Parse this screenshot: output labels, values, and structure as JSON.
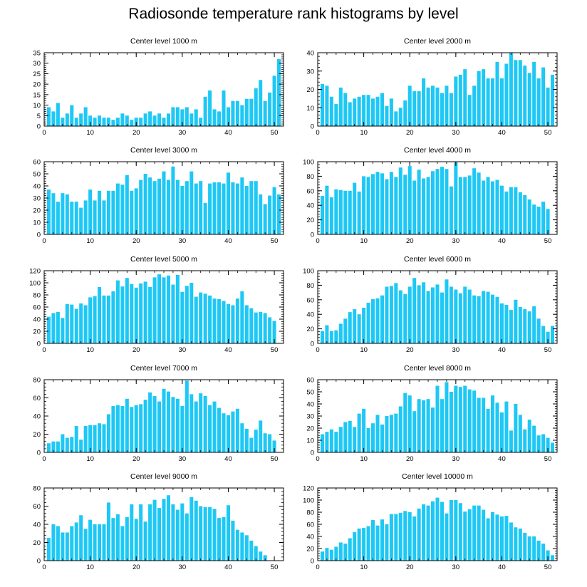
{
  "title": "Radiosonde temperature rank histograms by level",
  "bar_color": "#1ec8f5",
  "chart_data": [
    {
      "type": "bar",
      "title": "Center level 1000 m",
      "xlim": [
        0,
        52
      ],
      "ylim": [
        0,
        35
      ],
      "xticks": [
        0,
        10,
        20,
        30,
        40,
        50
      ],
      "yticks": [
        0,
        5,
        10,
        15,
        20,
        25,
        30,
        35
      ],
      "values": [
        9,
        7,
        11,
        4,
        6,
        10,
        4,
        6,
        9,
        5,
        4,
        5,
        4,
        4,
        3,
        4,
        6,
        5,
        3,
        4,
        4,
        6,
        7,
        5,
        6,
        4,
        6,
        9,
        9,
        8,
        9,
        6,
        8,
        4,
        14,
        17,
        8,
        7,
        17,
        9,
        12,
        12,
        10,
        13,
        13,
        18,
        22,
        12,
        16,
        24,
        32
      ]
    },
    {
      "type": "bar",
      "title": "Center level 2000 m",
      "xlim": [
        0,
        52
      ],
      "ylim": [
        0,
        40
      ],
      "xticks": [
        0,
        10,
        20,
        30,
        40,
        50
      ],
      "yticks": [
        0,
        10,
        20,
        30,
        40
      ],
      "values": [
        23,
        22,
        16,
        12,
        21,
        18,
        13,
        15,
        16,
        17,
        17,
        15,
        16,
        18,
        11,
        15,
        8,
        10,
        14,
        22,
        19,
        19,
        26,
        21,
        22,
        21,
        18,
        22,
        18,
        27,
        28,
        31,
        17,
        22,
        30,
        31,
        26,
        26,
        35,
        26,
        34,
        40,
        36,
        36,
        33,
        29,
        35,
        26,
        32,
        21,
        28
      ]
    },
    {
      "type": "bar",
      "title": "Center level 3000 m",
      "xlim": [
        0,
        52
      ],
      "ylim": [
        0,
        60
      ],
      "xticks": [
        0,
        10,
        20,
        30,
        40,
        50
      ],
      "yticks": [
        0,
        10,
        20,
        30,
        40,
        50,
        60
      ],
      "values": [
        37,
        34,
        27,
        34,
        33,
        27,
        27,
        22,
        28,
        37,
        28,
        36,
        28,
        36,
        36,
        42,
        41,
        49,
        36,
        38,
        45,
        50,
        47,
        44,
        46,
        52,
        45,
        56,
        45,
        40,
        44,
        52,
        42,
        44,
        26,
        42,
        43,
        43,
        42,
        51,
        43,
        42,
        47,
        40,
        44,
        44,
        33,
        25,
        32,
        39,
        33
      ]
    },
    {
      "type": "bar",
      "title": "Center level 4000 m",
      "xlim": [
        0,
        52
      ],
      "ylim": [
        0,
        100
      ],
      "xticks": [
        0,
        10,
        20,
        30,
        40,
        50
      ],
      "yticks": [
        0,
        20,
        40,
        60,
        80,
        100
      ],
      "values": [
        53,
        67,
        51,
        62,
        61,
        60,
        60,
        71,
        59,
        80,
        79,
        83,
        86,
        84,
        76,
        86,
        79,
        92,
        82,
        94,
        74,
        89,
        77,
        79,
        87,
        90,
        93,
        90,
        66,
        99,
        79,
        79,
        81,
        91,
        85,
        74,
        79,
        73,
        75,
        67,
        59,
        65,
        65,
        58,
        54,
        48,
        41,
        38,
        45,
        35
      ]
    },
    {
      "type": "bar",
      "title": "Center level 5000 m",
      "xlim": [
        0,
        52
      ],
      "ylim": [
        0,
        120
      ],
      "xticks": [
        0,
        10,
        20,
        30,
        40,
        50
      ],
      "yticks": [
        0,
        20,
        40,
        60,
        80,
        100,
        120
      ],
      "values": [
        44,
        50,
        52,
        42,
        65,
        64,
        57,
        66,
        63,
        76,
        78,
        93,
        79,
        79,
        86,
        104,
        94,
        108,
        98,
        92,
        99,
        102,
        93,
        109,
        114,
        109,
        112,
        97,
        113,
        85,
        95,
        100,
        77,
        84,
        82,
        79,
        74,
        73,
        70,
        65,
        63,
        74,
        86,
        63,
        58,
        51,
        52,
        50,
        43,
        37
      ]
    },
    {
      "type": "bar",
      "title": "Center level 6000 m",
      "xlim": [
        0,
        52
      ],
      "ylim": [
        0,
        100
      ],
      "xticks": [
        0,
        10,
        20,
        30,
        40,
        50
      ],
      "yticks": [
        0,
        20,
        40,
        60,
        80,
        100
      ],
      "values": [
        17,
        25,
        17,
        18,
        27,
        34,
        43,
        47,
        40,
        49,
        56,
        61,
        62,
        66,
        78,
        79,
        83,
        73,
        68,
        78,
        90,
        80,
        84,
        72,
        77,
        81,
        70,
        88,
        78,
        74,
        69,
        78,
        74,
        66,
        65,
        72,
        71,
        67,
        64,
        55,
        53,
        46,
        60,
        50,
        47,
        44,
        51,
        34,
        24,
        16,
        24
      ]
    },
    {
      "type": "bar",
      "title": "Center level 7000 m",
      "xlim": [
        0,
        52
      ],
      "ylim": [
        0,
        80
      ],
      "xticks": [
        0,
        10,
        20,
        30,
        40,
        50
      ],
      "yticks": [
        0,
        20,
        40,
        60,
        80
      ],
      "values": [
        10,
        12,
        12,
        20,
        16,
        17,
        29,
        14,
        29,
        30,
        30,
        32,
        31,
        42,
        51,
        52,
        51,
        59,
        50,
        52,
        53,
        58,
        66,
        62,
        56,
        70,
        67,
        61,
        59,
        51,
        79,
        64,
        56,
        65,
        62,
        52,
        56,
        49,
        43,
        41,
        45,
        48,
        32,
        26,
        16,
        25,
        35,
        21,
        20,
        13
      ]
    },
    {
      "type": "bar",
      "title": "Center level 8000 m",
      "xlim": [
        0,
        52
      ],
      "ylim": [
        0,
        60
      ],
      "xticks": [
        0,
        10,
        20,
        30,
        40,
        50
      ],
      "yticks": [
        0,
        10,
        20,
        30,
        40,
        50,
        60
      ],
      "values": [
        15,
        17,
        19,
        17,
        21,
        25,
        26,
        21,
        32,
        36,
        20,
        24,
        31,
        23,
        30,
        31,
        32,
        38,
        49,
        47,
        34,
        44,
        43,
        44,
        37,
        55,
        44,
        58,
        50,
        55,
        54,
        55,
        52,
        51,
        45,
        45,
        36,
        47,
        41,
        33,
        42,
        18,
        40,
        31,
        19,
        27,
        22,
        14,
        15,
        12,
        8
      ]
    },
    {
      "type": "bar",
      "title": "Center level 9000 m",
      "xlim": [
        0,
        52
      ],
      "ylim": [
        0,
        80
      ],
      "xticks": [
        0,
        10,
        20,
        30,
        40,
        50
      ],
      "yticks": [
        0,
        20,
        40,
        60,
        80
      ],
      "values": [
        25,
        40,
        38,
        31,
        31,
        38,
        42,
        50,
        35,
        45,
        40,
        40,
        40,
        64,
        47,
        51,
        38,
        48,
        62,
        46,
        62,
        43,
        62,
        67,
        58,
        68,
        72,
        62,
        56,
        63,
        52,
        70,
        66,
        60,
        59,
        59,
        57,
        47,
        48,
        61,
        44,
        34,
        31,
        28,
        22,
        16,
        10,
        6
      ]
    },
    {
      "type": "bar",
      "title": "Center level 10000 m",
      "xlim": [
        0,
        52
      ],
      "ylim": [
        0,
        120
      ],
      "xticks": [
        0,
        10,
        20,
        30,
        40,
        50
      ],
      "yticks": [
        0,
        20,
        40,
        60,
        80,
        100,
        120
      ],
      "values": [
        15,
        21,
        18,
        23,
        30,
        28,
        37,
        47,
        53,
        54,
        57,
        67,
        58,
        68,
        60,
        77,
        77,
        79,
        82,
        80,
        73,
        86,
        93,
        91,
        98,
        104,
        97,
        78,
        100,
        100,
        95,
        81,
        85,
        91,
        91,
        84,
        70,
        80,
        76,
        73,
        74,
        63,
        55,
        53,
        46,
        40,
        40,
        33,
        28,
        17,
        9
      ]
    }
  ]
}
